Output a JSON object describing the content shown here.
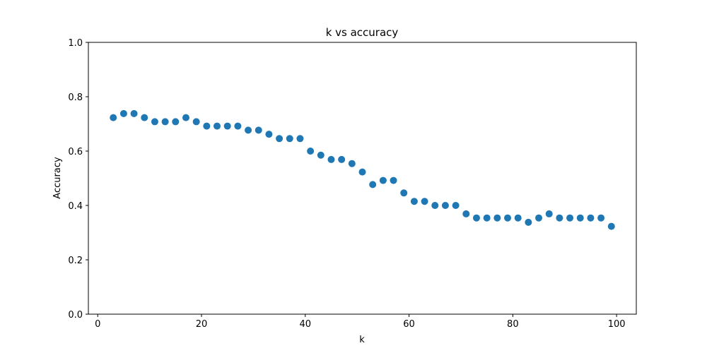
{
  "chart_data": {
    "type": "scatter",
    "title": "k vs accuracy",
    "xlabel": "k",
    "ylabel": "Accuracy",
    "xlim": [
      -1.8,
      103.8
    ],
    "ylim": [
      0,
      1.0
    ],
    "x_ticks": [
      0,
      20,
      40,
      60,
      80,
      100
    ],
    "y_ticks": [
      0.0,
      0.2,
      0.4,
      0.6,
      0.8,
      1.0
    ],
    "x_tick_labels": [
      "0",
      "20",
      "40",
      "60",
      "80",
      "100"
    ],
    "y_tick_labels": [
      "0.0",
      "0.2",
      "0.4",
      "0.6",
      "0.8",
      "1.0"
    ],
    "grid": false,
    "marker_color": "#1f77b4",
    "x": [
      3,
      5,
      7,
      9,
      11,
      13,
      15,
      17,
      19,
      21,
      23,
      25,
      27,
      29,
      31,
      33,
      35,
      37,
      39,
      41,
      43,
      45,
      47,
      49,
      51,
      53,
      55,
      57,
      59,
      61,
      63,
      65,
      67,
      69,
      71,
      73,
      75,
      77,
      79,
      81,
      83,
      85,
      87,
      89,
      91,
      93,
      95,
      97,
      99
    ],
    "y": [
      0.723,
      0.738,
      0.738,
      0.723,
      0.708,
      0.708,
      0.708,
      0.723,
      0.708,
      0.692,
      0.692,
      0.692,
      0.692,
      0.677,
      0.677,
      0.662,
      0.646,
      0.646,
      0.646,
      0.6,
      0.585,
      0.569,
      0.569,
      0.554,
      0.523,
      0.477,
      0.492,
      0.492,
      0.446,
      0.415,
      0.415,
      0.4,
      0.4,
      0.4,
      0.369,
      0.354,
      0.354,
      0.354,
      0.354,
      0.354,
      0.338,
      0.354,
      0.369,
      0.354,
      0.354,
      0.354,
      0.354,
      0.354,
      0.323
    ]
  }
}
